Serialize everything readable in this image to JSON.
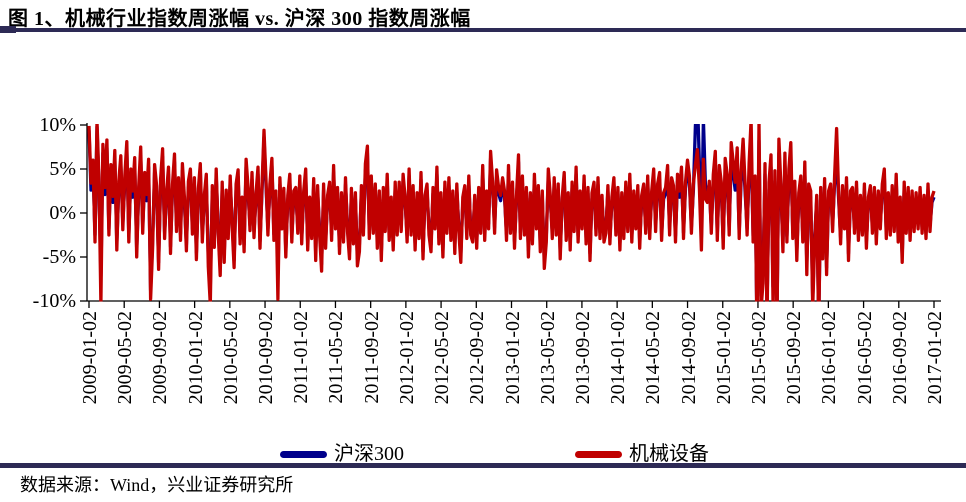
{
  "header": {
    "title": "图 1、机械行业指数周涨幅 vs. 沪深 300 指数周涨幅"
  },
  "footer": {
    "source": "数据来源：Wind，兴业证券研究所"
  },
  "colors": {
    "rule": "#2D2A55",
    "axis": "#000000",
    "csi300": "#00008B",
    "machinery": "#C00000"
  },
  "legend": [
    {
      "label": "沪深300",
      "color": "#00008B"
    },
    {
      "label": "机械设备",
      "color": "#C00000"
    }
  ],
  "chart_data": {
    "type": "line",
    "title": "机械行业指数周涨幅 vs. 沪深300指数周涨幅",
    "xlabel": "",
    "ylabel": "",
    "unit": "%",
    "frequency": "weekly",
    "grid": false,
    "legend_position": "bottom",
    "ylim": [
      -10,
      10
    ],
    "yticks": [
      10,
      5,
      0,
      -5,
      -10
    ],
    "ytick_labels": [
      "10%",
      "5%",
      "0%",
      "-5%",
      "-10%"
    ],
    "xticks": [
      "2009-01-02",
      "2009-05-02",
      "2009-09-02",
      "2010-01-02",
      "2010-05-02",
      "2010-09-02",
      "2011-01-02",
      "2011-05-02",
      "2011-09-02",
      "2012-01-02",
      "2012-05-02",
      "2012-09-02",
      "2013-01-02",
      "2013-05-02",
      "2013-09-02",
      "2014-01-02",
      "2014-05-02",
      "2014-09-02",
      "2015-01-02",
      "2015-05-02",
      "2015-09-02",
      "2016-01-02",
      "2016-05-02",
      "2016-09-02",
      "2017-01-02"
    ],
    "series": [
      {
        "name": "沪深300",
        "color": "#00008B",
        "values": [
          9.4,
          2.6,
          5.1,
          -2.5,
          9.8,
          3.2,
          -7.2,
          6.8,
          2.1,
          7.4,
          -1.8,
          4.6,
          1.2,
          6.2,
          -3.4,
          2.8,
          5.6,
          -1.2,
          3.4,
          7.2,
          -2.6,
          4.1,
          1.8,
          5.4,
          -4.2,
          2.2,
          6.6,
          -1.6,
          3.8,
          1.4,
          5.2,
          -8.8,
          -3.2,
          4.6,
          2.4,
          -5.6,
          3.1,
          6.4,
          -2.2,
          1.6,
          4.4,
          -3.8,
          2.6,
          5.8,
          -1.4,
          3.2,
          -2.4,
          4.8,
          1.1,
          -3.6,
          2.9,
          4.2,
          -1.8,
          3.2,
          -4.5,
          2.1,
          4.8,
          -2.6,
          1.4,
          3.6,
          -5.2,
          -8.5,
          2.4,
          -3.1,
          4.2,
          -1.6,
          -6.2,
          2.8,
          -4.8,
          1.9,
          -2.2,
          3.4,
          -1.1,
          -5.4,
          2.6,
          4.1,
          -2.8,
          1.2,
          -3.6,
          5.2,
          2.2,
          -1.4,
          3.8,
          -2.1,
          1.6,
          4.4,
          -3.2,
          2.4,
          8.6,
          3.1,
          -1.8,
          2.6,
          5.4,
          -2.4,
          1.8,
          -7.0,
          3.2,
          -1.2,
          2.1,
          -4.2,
          1.4,
          3.6,
          -2.6,
          1.8,
          2.2,
          -1.6,
          3.4,
          -2.8,
          1.8,
          4.2,
          -3.4,
          1.2,
          -2.2,
          3.1,
          -4.6,
          2.4,
          -1.8,
          -5.8,
          2.6,
          -3.2,
          1.4,
          2.8,
          -2.4,
          4.6,
          -1.2,
          2.2,
          -3.8,
          1.6,
          -2.6,
          3.2,
          -1.4,
          -4.4,
          2.1,
          -2.8,
          1.6,
          -5.2,
          -3.6,
          2.4,
          -1.8,
          4.8,
          6.8,
          -2.2,
          3.4,
          -1.6,
          2.6,
          -3.2,
          1.8,
          -4.6,
          2.2,
          -1.4,
          3.6,
          -2.4,
          1.2,
          -3.4,
          2.8,
          -1.8,
          2.8,
          -1.4,
          3.6,
          1.2,
          -2.6,
          4.2,
          -1.8,
          2.4,
          -3.4,
          1.6,
          -2.2,
          3.8,
          -4.4,
          1.4,
          2.6,
          -1.8,
          -3.6,
          2.2,
          -1.2,
          4.4,
          -2.8,
          1.6,
          -4.2,
          2.8,
          -1.6,
          3.2,
          -2.4,
          1.8,
          -3.8,
          2.6,
          -1.4,
          -4.8,
          1.2,
          2.4,
          -2.2,
          3.4,
          -1.8,
          -2.6,
          1.4,
          -3.2,
          2.2,
          -1.6,
          4.6,
          -2.4,
          1.8,
          -1.2,
          6.2,
          2.8,
          -1.6,
          4.1,
          2.2,
          1.4,
          3.2,
          1.8,
          -2.4,
          4.6,
          -1.6,
          2.8,
          -3.2,
          1.4,
          5.8,
          -2.2,
          3.4,
          -1.8,
          2.2,
          -4.2,
          1.6,
          -2.8,
          3.6,
          -1.2,
          2.4,
          -3.6,
          1.8,
          -5.5,
          -2.6,
          4.2,
          1.4,
          -2.2,
          3.2,
          -1.8,
          2.6,
          -4.4,
          1.2,
          3.8,
          -2.4,
          1.6,
          -3.4,
          2.8,
          -1.4,
          4.4,
          -2.6,
          1.8,
          -1.2,
          3.4,
          -2.8,
          2.2,
          -4.6,
          1.6,
          2.8,
          -1.8,
          3.2,
          -2.2,
          1.4,
          -2.6,
          -1.6,
          2.4,
          -2.8,
          1.2,
          3.2,
          -1.8,
          2.2,
          -3.4,
          1.6,
          -2.2,
          2.8,
          -1.4,
          3.6,
          -2.6,
          1.8,
          -1.2,
          2.4,
          -3.2,
          1.4,
          2.6,
          -1.6,
          3.4,
          -2.2,
          1.8,
          4.2,
          -1.4,
          2.6,
          3.8,
          -2.4,
          1.6,
          2.2,
          4.6,
          -1.8,
          3.2,
          2.4,
          -2.6,
          3.6,
          1.8,
          4.4,
          -2.2,
          2.8,
          5.2,
          3.4,
          -1.6,
          2.6,
          9.9,
          13.0,
          5.6,
          -2.8,
          10.6,
          3.2,
          2.4,
          2.8,
          -1.6,
          3.4,
          5.6,
          -2.4,
          4.2,
          2.6,
          -3.2,
          4.8,
          3.4,
          -1.8,
          6.2,
          4.4,
          2.6,
          5.8,
          -2.2,
          3.6,
          6.6,
          2.4,
          -1.8,
          4.2,
          7.4,
          -2.6,
          3.2,
          -13.2,
          8.2,
          -9.4,
          -6.6,
          4.4,
          -10.8,
          2.6,
          5.2,
          -8.4,
          3.6,
          -12.4,
          6.8,
          2.2,
          -3.4,
          5.4,
          -2.6,
          3.8,
          6.4,
          -2.2,
          2.8,
          -4.4,
          1.6,
          3.2,
          -2.6,
          4.6,
          -5.8,
          2.4,
          1.8,
          -9.8,
          -2.6,
          1.4,
          -12.6,
          2.2,
          -4.4,
          3.1,
          -6.2,
          1.8,
          2.6,
          -1.4,
          3.4,
          6.4,
          1.6,
          -2.8,
          2.4,
          -1.2,
          3.2,
          -4.6,
          1.8,
          2.2,
          -1.6,
          2.8,
          -2.4,
          1.4,
          -1.8,
          2.6,
          -3.2,
          1.2,
          2.4,
          -1.6,
          2.2,
          -2.8,
          1.8,
          -1.2,
          2.6,
          4.2,
          -2.2,
          1.6,
          -1.8,
          2.4,
          -1.4,
          3.6,
          -2.6,
          1.2,
          -4.8,
          2.8,
          -1.6,
          2.2,
          -2.4,
          1.8,
          -1.4,
          1.6,
          -1.2,
          2.2,
          -1.6,
          1.4,
          -2.2,
          2.6,
          -1.4,
          1.2,
          1.8
        ]
      },
      {
        "name": "机械设备",
        "color": "#C00000",
        "values": [
          9.9,
          3.4,
          6.0,
          -3.3,
          10.4,
          4.1,
          -10.3,
          7.8,
          2.9,
          8.3,
          -2.5,
          5.5,
          1.9,
          7.1,
          -4.2,
          3.6,
          6.5,
          -1.9,
          4.2,
          8.1,
          -3.3,
          5.0,
          2.5,
          6.3,
          -5.0,
          3.0,
          7.5,
          -2.3,
          4.6,
          2.1,
          6.1,
          -9.8,
          -4.0,
          5.5,
          3.1,
          -6.4,
          3.9,
          7.3,
          -2.9,
          2.3,
          5.2,
          -4.6,
          3.3,
          6.7,
          -2.1,
          4.0,
          -3.1,
          5.6,
          1.8,
          -4.3,
          3.6,
          5.0,
          -2.4,
          4.0,
          -5.3,
          2.8,
          5.6,
          -3.3,
          2.0,
          4.4,
          -6.1,
          -10.4,
          3.1,
          -3.9,
          5.0,
          -2.2,
          -7.1,
          3.5,
          -5.6,
          2.6,
          -2.9,
          4.2,
          -1.7,
          -6.2,
          3.3,
          4.9,
          -3.5,
          1.8,
          -4.4,
          6.1,
          2.9,
          -2.0,
          4.6,
          -2.8,
          2.2,
          5.2,
          -4.0,
          3.1,
          9.4,
          3.8,
          -2.5,
          3.3,
          6.2,
          -3.1,
          2.5,
          -9.8,
          4.0,
          -1.8,
          2.8,
          -5.0,
          2.0,
          4.4,
          -3.3,
          2.5,
          2.9,
          -2.3,
          4.2,
          -3.5,
          2.5,
          5.0,
          -4.2,
          1.8,
          -2.9,
          3.9,
          -5.4,
          3.1,
          -2.5,
          -6.6,
          3.3,
          -4.0,
          2.0,
          3.5,
          -3.1,
          5.4,
          -1.8,
          2.9,
          -4.6,
          2.3,
          -3.3,
          4.0,
          -2.1,
          -5.2,
          2.8,
          -3.5,
          2.3,
          -6.0,
          -4.4,
          3.1,
          -2.5,
          5.6,
          7.6,
          -2.9,
          4.2,
          -2.3,
          3.3,
          -4.0,
          2.5,
          -5.4,
          2.9,
          -2.1,
          4.4,
          -3.1,
          1.8,
          -4.2,
          3.5,
          -2.5,
          3.5,
          -2.1,
          4.4,
          1.8,
          -3.3,
          5.0,
          -2.5,
          3.1,
          -4.2,
          2.3,
          -2.9,
          4.6,
          -5.2,
          2.0,
          3.3,
          -2.5,
          -4.4,
          2.9,
          -1.8,
          5.2,
          -3.5,
          2.3,
          -5.0,
          3.5,
          -2.3,
          4.0,
          -3.1,
          2.5,
          -4.6,
          3.3,
          -2.1,
          -5.6,
          1.8,
          3.1,
          -2.9,
          4.2,
          -2.5,
          -3.3,
          2.0,
          -4.0,
          2.9,
          -2.3,
          5.4,
          -3.1,
          2.5,
          -1.8,
          7.0,
          3.5,
          -2.3,
          4.9,
          2.9,
          2.0,
          4.0,
          2.5,
          -3.1,
          5.4,
          -2.3,
          3.5,
          -4.0,
          2.0,
          6.6,
          -2.9,
          4.2,
          -2.5,
          2.9,
          -5.0,
          2.3,
          -3.5,
          4.4,
          -1.8,
          3.1,
          -4.4,
          2.5,
          -6.3,
          -3.3,
          5.0,
          2.0,
          -2.9,
          4.0,
          -2.5,
          3.3,
          -5.2,
          1.8,
          4.6,
          -3.1,
          2.3,
          -4.2,
          3.5,
          -2.1,
          5.2,
          -3.3,
          2.5,
          -1.8,
          4.2,
          -3.5,
          2.9,
          -5.4,
          2.3,
          3.5,
          -2.5,
          4.0,
          -2.9,
          2.0,
          -3.3,
          -2.3,
          3.1,
          -3.5,
          1.8,
          4.0,
          -2.5,
          2.9,
          -4.2,
          2.3,
          -2.9,
          3.5,
          -2.1,
          4.4,
          -3.3,
          2.5,
          -1.8,
          3.1,
          -4.0,
          2.0,
          3.3,
          -2.3,
          4.2,
          -2.9,
          2.5,
          5.0,
          -2.1,
          3.3,
          4.6,
          -3.1,
          2.3,
          2.9,
          5.4,
          -2.5,
          4.0,
          3.1,
          -3.3,
          4.4,
          2.5,
          5.2,
          -2.9,
          3.5,
          6.0,
          4.2,
          -2.3,
          3.3,
          5.5,
          7.2,
          2.8,
          -4.2,
          6.1,
          1.6,
          1.2,
          3.6,
          -2.3,
          4.4,
          7.0,
          -3.1,
          5.4,
          3.5,
          -4.0,
          6.2,
          4.4,
          -2.5,
          8.0,
          5.8,
          3.5,
          7.4,
          -2.9,
          4.8,
          8.4,
          3.3,
          -2.5,
          5.6,
          10.6,
          -3.3,
          4.2,
          -14.0,
          10.2,
          -11.0,
          -8.0,
          5.6,
          -12.2,
          3.5,
          6.6,
          -10.0,
          4.8,
          -13.6,
          8.4,
          3.1,
          -4.4,
          6.8,
          -3.3,
          5.0,
          8.0,
          -2.9,
          3.6,
          -5.4,
          2.3,
          4.2,
          -3.3,
          5.8,
          -7.0,
          3.3,
          2.5,
          -10.8,
          -3.3,
          2.0,
          -13.4,
          2.9,
          -5.2,
          3.9,
          -7.0,
          2.5,
          3.3,
          -2.1,
          4.2,
          9.6,
          2.3,
          -3.5,
          3.1,
          -1.8,
          4.0,
          -5.4,
          2.5,
          2.9,
          -2.3,
          3.5,
          -3.1,
          2.0,
          -2.5,
          3.3,
          -4.0,
          1.8,
          3.1,
          -2.3,
          2.9,
          -3.5,
          2.5,
          -1.8,
          3.3,
          5.0,
          -2.9,
          2.3,
          -2.5,
          3.1,
          -2.1,
          4.4,
          -3.3,
          1.8,
          -5.6,
          3.5,
          -2.3,
          2.9,
          -3.1,
          2.5,
          -2.1,
          2.3,
          -1.8,
          2.9,
          -2.3,
          2.0,
          -2.9,
          3.3,
          -2.1,
          1.8,
          2.5
        ]
      }
    ]
  }
}
